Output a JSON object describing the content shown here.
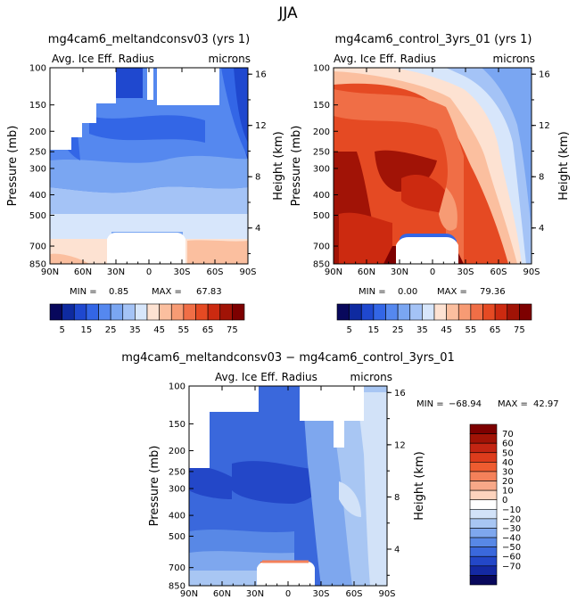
{
  "figure_title": "JJA",
  "chart_data": [
    {
      "type": "heatmap",
      "title": "mg4cam6_meltandconsv03 (yrs 1)",
      "left_label": "Avg. Ice Eff. Radius",
      "units": "microns",
      "ylabel": "Pressure (mb)",
      "y2label": "Height (km)",
      "x_ticks": [
        "90N",
        "60N",
        "30N",
        "0",
        "30S",
        "60S",
        "90S"
      ],
      "p_ticks": [
        "100",
        "150",
        "200",
        "250",
        "300",
        "400",
        "500",
        "700",
        "850"
      ],
      "h_ticks": [
        "16",
        "12",
        "8",
        "4"
      ],
      "min_label": "MIN =",
      "min_value": "0.85",
      "max_label": "MAX =",
      "max_value": "67.83",
      "colorbar_ticks": [
        "5",
        "15",
        "25",
        "35",
        "45",
        "55",
        "65",
        "75"
      ]
    },
    {
      "type": "heatmap",
      "title": "mg4cam6_control_3yrs_01 (yrs 1)",
      "left_label": "Avg. Ice Eff. Radius",
      "units": "microns",
      "ylabel": "Pressure (mb)",
      "y2label": "Height (km)",
      "x_ticks": [
        "90N",
        "60N",
        "30N",
        "0",
        "30S",
        "60S",
        "90S"
      ],
      "p_ticks": [
        "100",
        "150",
        "200",
        "250",
        "300",
        "400",
        "500",
        "700",
        "850"
      ],
      "h_ticks": [
        "16",
        "12",
        "8",
        "4"
      ],
      "min_label": "MIN =",
      "min_value": "0.00",
      "max_label": "MAX =",
      "max_value": "79.36",
      "colorbar_ticks": [
        "5",
        "15",
        "25",
        "35",
        "45",
        "55",
        "65",
        "75"
      ]
    },
    {
      "type": "heatmap",
      "title": "mg4cam6_meltandconsv03 − mg4cam6_control_3yrs_01",
      "left_label": "Avg. Ice Eff. Radius",
      "units": "microns",
      "ylabel": "Pressure (mb)",
      "y2label": "Height (km)",
      "x_ticks": [
        "90N",
        "60N",
        "30N",
        "0",
        "30S",
        "60S",
        "90S"
      ],
      "p_ticks": [
        "100",
        "150",
        "200",
        "250",
        "300",
        "400",
        "500",
        "700",
        "850"
      ],
      "h_ticks": [
        "16",
        "12",
        "8",
        "4"
      ],
      "min_label": "MIN =",
      "min_value": "−68.94",
      "max_label": "MAX =",
      "max_value": "42.97",
      "colorbar_ticks": [
        "70",
        "60",
        "50",
        "40",
        "30",
        "20",
        "10",
        "0",
        "−10",
        "−20",
        "−30",
        "−40",
        "−50",
        "−60",
        "−70"
      ]
    }
  ],
  "colors": {
    "seq_scale": [
      "#08085c",
      "#0e2aa0",
      "#1f48cf",
      "#3366e6",
      "#5588ef",
      "#7aa6f2",
      "#a4c3f6",
      "#d7e6fb",
      "#fde2d2",
      "#fbbf9f",
      "#f79b74",
      "#f06e46",
      "#e54a23",
      "#cc2a10",
      "#a11306",
      "#7d0000"
    ],
    "diff_scale": [
      "#7d0000",
      "#a11306",
      "#c32512",
      "#dd3c1c",
      "#ee5c30",
      "#f4815a",
      "#f8a888",
      "#fcd3bd",
      "#ffffff",
      "#d2e2f8",
      "#a8c6f3",
      "#7ea7ee",
      "#5888e6",
      "#3a68dc",
      "#2347c8",
      "#1429a3",
      "#08085c"
    ]
  }
}
